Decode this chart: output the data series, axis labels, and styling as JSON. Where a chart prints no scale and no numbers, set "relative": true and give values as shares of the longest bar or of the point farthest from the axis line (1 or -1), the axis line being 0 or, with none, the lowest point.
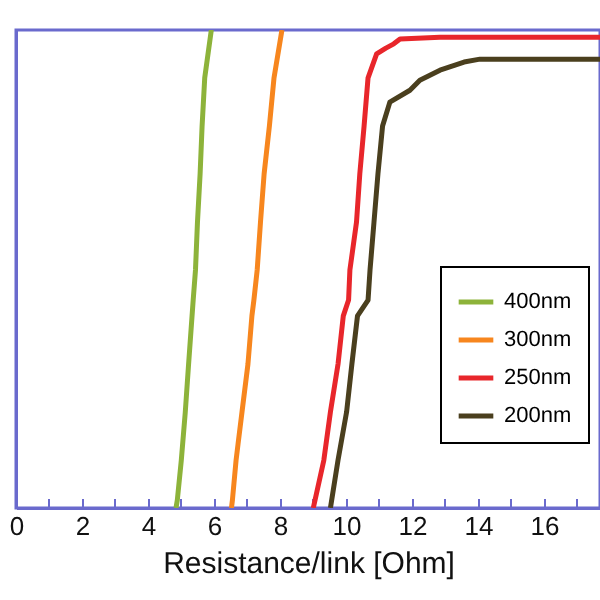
{
  "chart_data": {
    "type": "line",
    "relative": true,
    "xlabel": "Resistance/link [Ohm]",
    "xlim": [
      0,
      17.7
    ],
    "xticks": [
      0,
      {
        "value": 1,
        "label": null
      },
      2,
      {
        "value": 3,
        "label": null
      },
      4,
      {
        "value": 5,
        "label": null
      },
      6,
      {
        "value": 7,
        "label": null
      },
      8,
      {
        "value": 9,
        "label": null
      },
      10,
      {
        "value": 11,
        "label": null
      },
      12,
      {
        "value": 13,
        "label": null
      },
      14,
      {
        "value": 15,
        "label": null
      },
      16,
      {
        "value": 17,
        "label": null
      }
    ],
    "grid": false,
    "legend": "right",
    "marker": "none",
    "line_style": "solid",
    "series": [
      {
        "name": "400nm",
        "color": "#8db33a",
        "x": [
          4.85,
          4.89,
          5.01,
          5.13,
          5.23,
          5.37,
          5.44,
          5.5,
          5.58,
          5.64,
          5.72,
          5.92
        ],
        "values": [
          0,
          0.017,
          0.1,
          0.2,
          0.3,
          0.435,
          0.498,
          0.598,
          0.699,
          0.799,
          0.9,
          1
        ]
      },
      {
        "name": "300nm",
        "color": "#f7861e",
        "x": [
          6.53,
          6.56,
          6.67,
          6.73,
          6.85,
          7.03,
          7.15,
          7.21,
          7.31,
          7.41,
          7.52,
          7.68,
          7.82,
          8.06
        ],
        "values": [
          0,
          0.017,
          0.1,
          0.134,
          0.201,
          0.301,
          0.402,
          0.435,
          0.498,
          0.598,
          0.699,
          0.799,
          0.9,
          1
        ]
      },
      {
        "name": "250nm",
        "color": "#e8262b",
        "x": [
          9.01,
          9.33,
          9.53,
          9.76,
          9.92,
          10.08,
          10.12,
          10.32,
          10.42,
          10.55,
          10.67,
          10.93,
          11.21,
          11.45,
          11.64,
          12.85,
          17.7
        ],
        "values": [
          0,
          0.1,
          0.201,
          0.301,
          0.402,
          0.435,
          0.498,
          0.598,
          0.699,
          0.799,
          0.9,
          0.95,
          0.962,
          0.971,
          0.981,
          0.985,
          0.985
        ]
      },
      {
        "name": "200nm",
        "color": "#4a3f1e",
        "x": [
          9.53,
          9.76,
          10.02,
          10.18,
          10.35,
          10.67,
          10.73,
          10.85,
          10.97,
          11.11,
          11.33,
          11.94,
          12.24,
          12.85,
          13.58,
          14.06,
          17.7
        ],
        "values": [
          0,
          0.1,
          0.201,
          0.301,
          0.402,
          0.435,
          0.498,
          0.598,
          0.699,
          0.799,
          0.849,
          0.874,
          0.895,
          0.916,
          0.933,
          0.939,
          0.939
        ]
      }
    ]
  }
}
